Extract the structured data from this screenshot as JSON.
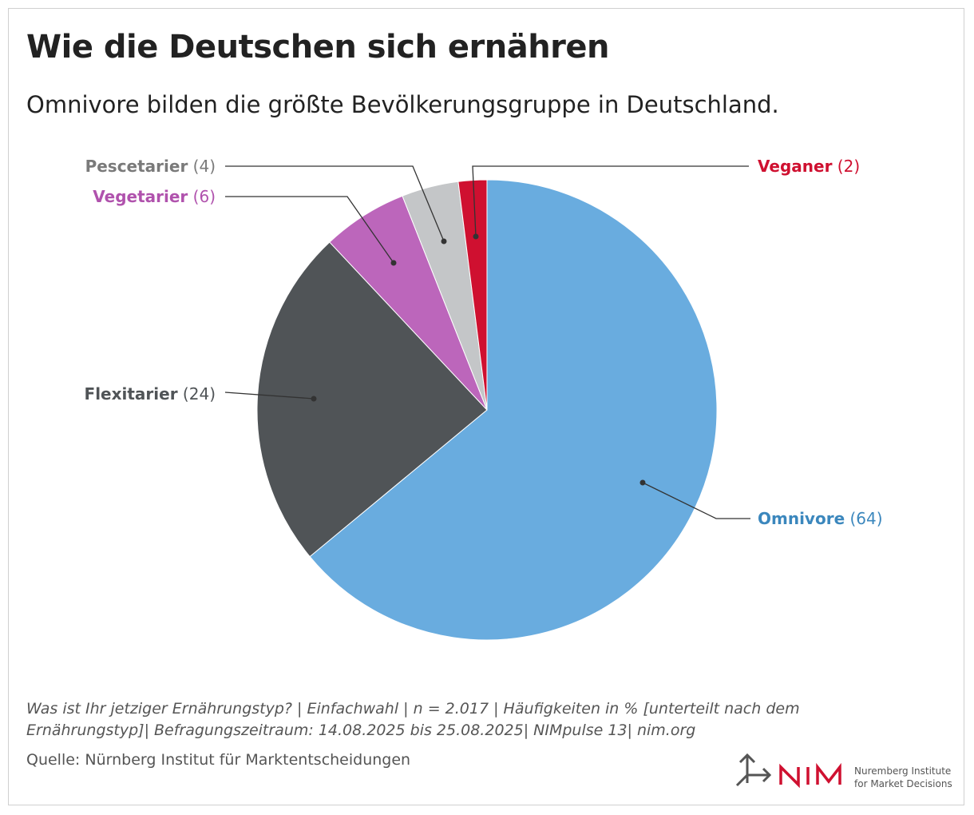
{
  "title": "Wie die Deutschen sich ernähren",
  "subtitle": "Omnivore bilden die größte Bevölkerungsgruppe in Deutschland.",
  "chart_data": {
    "type": "pie",
    "start": "12 o'clock, clockwise",
    "categories": [
      "Omnivore",
      "Flexitarier",
      "Vegetarier",
      "Pescetarier",
      "Veganer"
    ],
    "values": [
      64,
      24,
      6,
      4,
      2
    ],
    "labels": [
      "(64)",
      "(24)",
      "(6)",
      "(4)",
      "(2)"
    ],
    "colors": [
      "#69acdf",
      "#505457",
      "#bc66bb",
      "#c4c6c8",
      "#cf1030"
    ],
    "label_colors": [
      "#3b87bd",
      "#505457",
      "#b052ad",
      "#7a7a7a",
      "#cf1030"
    ]
  },
  "note": "Was ist Ihr jetziger Ernährungstyp? | Einfachwahl | n = 2.017 | Häufigkeiten in % [unterteilt nach dem Ernährungstyp]| Befragungszeitraum: 14.08.2025 bis 25.08.2025| NIMpulse 13| nim.org",
  "source": "Quelle: Nürnberg Institut für Marktentscheidungen",
  "logo": {
    "mark": "NIM",
    "line1": "Nuremberg Institute",
    "line2": "for Market Decisions"
  }
}
